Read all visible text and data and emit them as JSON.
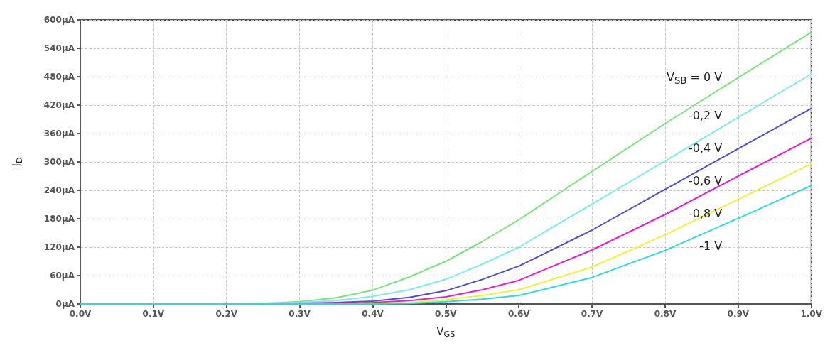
{
  "chart_data": {
    "type": "line",
    "xlabel": "V$_{GS}$",
    "ylabel": "I$_{D}$",
    "x": [
      0,
      0.1,
      0.2,
      0.25,
      0.3,
      0.35,
      0.4,
      0.45,
      0.5,
      0.55,
      0.6,
      0.7,
      0.8,
      0.9,
      1.0
    ],
    "series": [
      {
        "color": "#7ee07e",
        "values": [
          0,
          0,
          0,
          1,
          5,
          13,
          29,
          57,
          90,
          132,
          178,
          280,
          381,
          478,
          574
        ]
      },
      {
        "color": "#80eaea",
        "values": [
          0,
          0,
          0,
          0,
          3,
          7,
          16,
          30,
          52,
          84,
          120,
          211,
          302,
          394,
          486
        ]
      },
      {
        "color": "#5050c0",
        "values": [
          null,
          null,
          null,
          0,
          1,
          3,
          6,
          14,
          28,
          52,
          80,
          156,
          242,
          328,
          413
        ]
      },
      {
        "color": "#e020d0",
        "values": [
          null,
          null,
          null,
          null,
          0,
          1,
          3,
          7,
          15,
          30,
          50,
          114,
          189,
          270,
          350
        ]
      },
      {
        "color": "#f0f040",
        "values": [
          null,
          null,
          null,
          null,
          null,
          0,
          1,
          3,
          9,
          18,
          30,
          78,
          146,
          221,
          296
        ]
      },
      {
        "color": "#30d8d8",
        "values": [
          0,
          0,
          0,
          0,
          0,
          0,
          0,
          1,
          5,
          10,
          18,
          56,
          113,
          181,
          250
        ]
      }
    ],
    "xlim": [
      0,
      1
    ],
    "xticks": [
      {
        "value": 0,
        "label": "0.0V"
      },
      {
        "value": 0.1,
        "label": "0.1V"
      },
      {
        "value": 0.2,
        "label": "0.2V"
      },
      {
        "value": 0.3,
        "label": "0.3V"
      },
      {
        "value": 0.4,
        "label": "0.4V"
      },
      {
        "value": 0.5,
        "label": "0.5V"
      },
      {
        "value": 0.6,
        "label": "0.6V"
      },
      {
        "value": 0.7,
        "label": "0.7V"
      },
      {
        "value": 0.8,
        "label": "0.8V"
      },
      {
        "value": 0.9,
        "label": "0.9V"
      },
      {
        "value": 1,
        "label": "1.0V"
      }
    ],
    "ylim": [
      0,
      600
    ],
    "yticks": [
      {
        "value": 0,
        "label": "0µA"
      },
      {
        "value": 60,
        "label": "60µA"
      },
      {
        "value": 120,
        "label": "120µA"
      },
      {
        "value": 180,
        "label": "180µA"
      },
      {
        "value": 240,
        "label": "240µA"
      },
      {
        "value": 300,
        "label": "300µA"
      },
      {
        "value": 360,
        "label": "360µA"
      },
      {
        "value": 420,
        "label": "420µA"
      },
      {
        "value": 480,
        "label": "480µA"
      },
      {
        "value": 540,
        "label": "540µA"
      },
      {
        "value": 600,
        "label": "600µA"
      }
    ],
    "annotations": [
      "V$_{SB}$ = 0 V",
      "-0,2 V",
      "-0,4 V",
      "-0,6 V",
      "-0,8 V",
      "-1 V"
    ],
    "grid": true,
    "marker": "none",
    "line_style": "solid"
  }
}
